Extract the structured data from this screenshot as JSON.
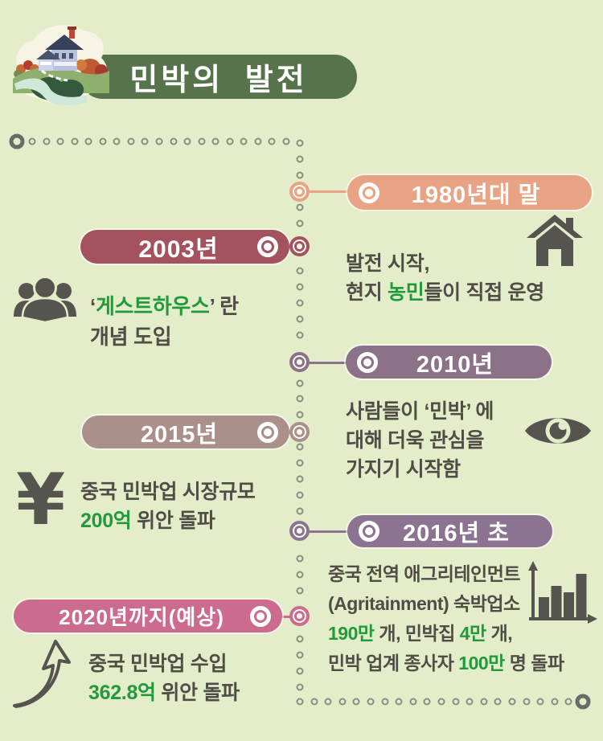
{
  "colors": {
    "bg": "#e4edc9",
    "header_green": "#57734b",
    "text_dark": "#504d47",
    "text_green": "#219a3c",
    "icon_gray": "#56544e",
    "dot_gray": "#8b8c81",
    "dot_strong": "#6a6b64",
    "c1980": "#e8a284",
    "c2003": "#a4525e",
    "c2010": "#8b7289",
    "c2015": "#aa8f8b",
    "c2016": "#8c7391",
    "c2020": "#cd6b8f"
  },
  "header": {
    "title": "민박의 발전"
  },
  "icons": {
    "yuan_symbol": "¥"
  },
  "timeline": {
    "items": [
      {
        "year_label": "1980년대 말",
        "side": "right",
        "icon": "house",
        "lines": [
          [
            {
              "t": "발전 시작,"
            }
          ],
          [
            {
              "t": "현지 "
            },
            {
              "t": "농민",
              "hl": true
            },
            {
              "t": "들이 직접 운영"
            }
          ]
        ]
      },
      {
        "year_label": "2003년",
        "side": "left",
        "icon": "people",
        "lines": [
          [
            {
              "t": "‘"
            },
            {
              "t": "게스트하우스",
              "hl": true
            },
            {
              "t": "’ 란"
            }
          ],
          [
            {
              "t": "개념 도입"
            }
          ]
        ]
      },
      {
        "year_label": "2010년",
        "side": "right",
        "icon": "eye",
        "lines": [
          [
            {
              "t": "사람들이 ‘민박’ 에"
            }
          ],
          [
            {
              "t": "대해 더욱 관심을"
            }
          ],
          [
            {
              "t": "가지기 시작함"
            }
          ]
        ]
      },
      {
        "year_label": "2015년",
        "side": "left",
        "icon": "yuan",
        "lines": [
          [
            {
              "t": "중국 민박업 시장규모"
            }
          ],
          [
            {
              "t": "200억",
              "hl": true
            },
            {
              "t": " 위안 돌파"
            }
          ]
        ]
      },
      {
        "year_label": "2016년 초",
        "side": "right",
        "icon": "bar-chart",
        "lines": [
          [
            {
              "t": "중국 전역 애그리테인먼트"
            }
          ],
          [
            {
              "t": "(Agritainment) 숙박업소"
            }
          ],
          [
            {
              "t": "190만",
              "hl": true
            },
            {
              "t": " 개, 민박집 "
            },
            {
              "t": "4만",
              "hl": true
            },
            {
              "t": " 개,"
            }
          ],
          [
            {
              "t": "민박 업계 종사자 "
            },
            {
              "t": "100만",
              "hl": true
            },
            {
              "t": " 명 돌파"
            }
          ]
        ]
      },
      {
        "year_label": "2020년까지(예상)",
        "side": "left",
        "icon": "growth-arrow",
        "lines": [
          [
            {
              "t": "중국 민박업 수입"
            }
          ],
          [
            {
              "t": "362.8억",
              "hl": true
            },
            {
              "t": " 위안 돌파"
            }
          ]
        ]
      }
    ]
  }
}
